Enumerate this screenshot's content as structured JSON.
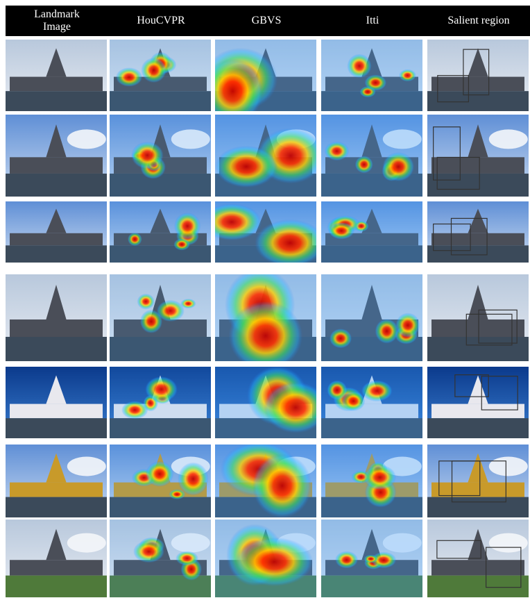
{
  "header": {
    "columns": [
      "Landmark Image",
      "HouCVPR",
      "GBVS",
      "Itti",
      "Salient region"
    ]
  }
}
